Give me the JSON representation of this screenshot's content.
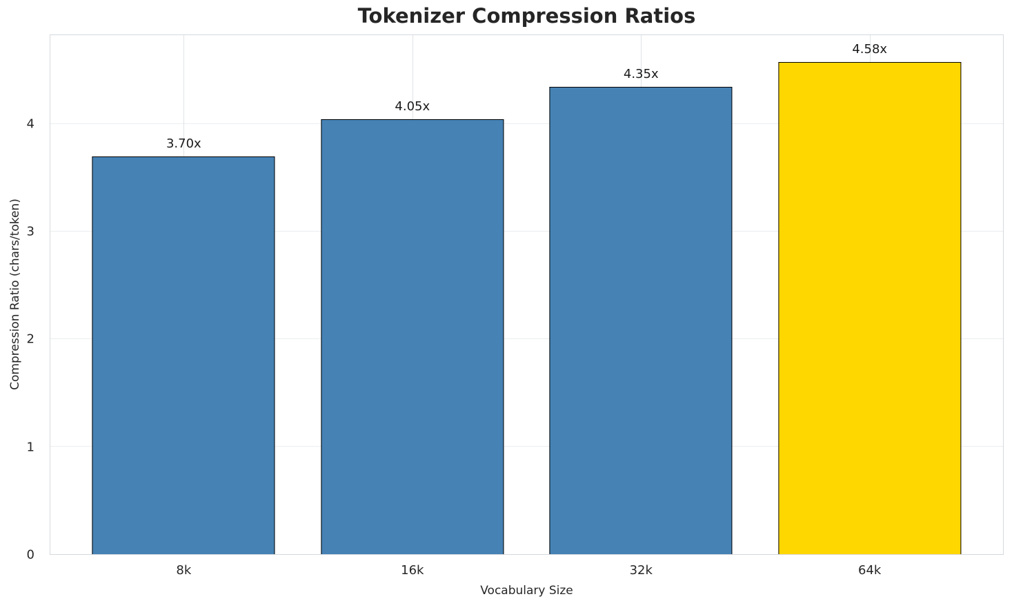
{
  "chart_data": {
    "type": "bar",
    "title": "Tokenizer Compression Ratios",
    "xlabel": "Vocabulary Size",
    "ylabel": "Compression Ratio (chars/token)",
    "categories": [
      "8k",
      "16k",
      "32k",
      "64k"
    ],
    "values": [
      3.7,
      4.05,
      4.35,
      4.58
    ],
    "bar_labels": [
      "3.70x",
      "4.05x",
      "4.35x",
      "4.58x"
    ],
    "bar_colors": [
      "#4682B4",
      "#4682B4",
      "#4682B4",
      "#FFD700"
    ],
    "edge_color": "#000000",
    "ylim": [
      0,
      4.83
    ],
    "yticks": [
      0,
      1,
      2,
      3,
      4
    ],
    "grid": true,
    "legend": "none"
  }
}
